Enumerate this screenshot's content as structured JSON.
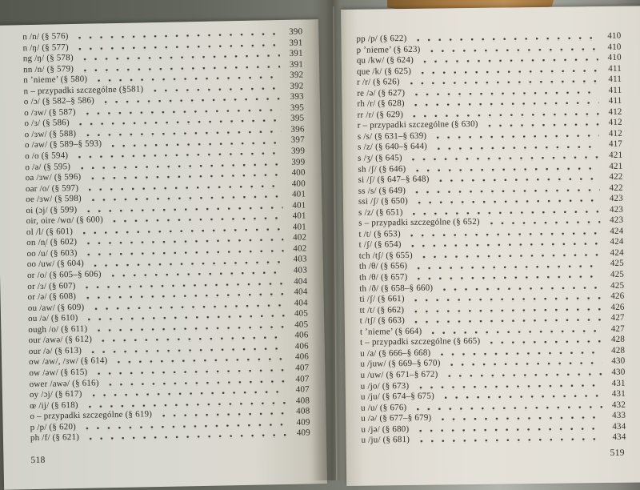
{
  "book": {
    "left_page": {
      "page_number": "518",
      "entries": [
        {
          "label": "n /n/ (§ 576)",
          "page": "390"
        },
        {
          "label": "n /ŋ/ (§ 577)",
          "page": "391"
        },
        {
          "label": "ng /ŋ/ (§ 578)",
          "page": "391"
        },
        {
          "label": "nn /n/ (§ 579)",
          "page": "391"
        },
        {
          "label": "n ’nieme’ (§ 580)",
          "page": "392"
        },
        {
          "label": "n – przypadki szczególne (§581)",
          "page": "392"
        },
        {
          "label": "o /ɔ/ (§ 582–§ 586)",
          "page": "393"
        },
        {
          "label": "o /ɜw/ (§ 587)",
          "page": "395"
        },
        {
          "label": "o /ɜ/ (§ 586)",
          "page": "395"
        },
        {
          "label": "o /ɜw/ (§ 588)",
          "page": "396"
        },
        {
          "label": "o /əw/ (§ 589–§ 593)",
          "page": "397"
        },
        {
          "label": "o /o (§ 594)",
          "page": "399"
        },
        {
          "label": "o /ə/ (§ 595)",
          "page": "399"
        },
        {
          "label": "oa /ɜw/ (§ 596)",
          "page": "400"
        },
        {
          "label": "oar /o/ (§ 597)",
          "page": "400"
        },
        {
          "label": "oe /ɜw/ (§ 598)",
          "page": "401"
        },
        {
          "label": "oi (ɔj/ (§ 599)",
          "page": "401"
        },
        {
          "label": "oir, oire /wɑ/ (§ 600)",
          "page": "401"
        },
        {
          "label": "ol /l/ (§ 601)",
          "page": "401"
        },
        {
          "label": "on /n̩/ (§ 602)",
          "page": "402"
        },
        {
          "label": "oo /u/ (§ 603)",
          "page": "402"
        },
        {
          "label": "oo /uw/ (§ 604)",
          "page": "403"
        },
        {
          "label": "or /o/ (§ 605–§ 606)",
          "page": "403"
        },
        {
          "label": "or /ɜ/ (§ 607)",
          "page": "404"
        },
        {
          "label": "or /ə/ (§ 608)",
          "page": "404"
        },
        {
          "label": "ou /aw/ (§ 609)",
          "page": "404"
        },
        {
          "label": "ou /ə/ (§ 610)",
          "page": "405"
        },
        {
          "label": "ough /o/ (§ 611)",
          "page": "405"
        },
        {
          "label": "our /awə/ (§ 612)",
          "page": "406"
        },
        {
          "label": "our /ə/ (§ 613)",
          "page": "406"
        },
        {
          "label": "ow /aw/, /ɜw/ (§ 614)",
          "page": "406"
        },
        {
          "label": "ow /əw/ (§ 615)",
          "page": "407"
        },
        {
          "label": "ower /awə/ (§ 616)",
          "page": "407"
        },
        {
          "label": "oy /ɔj/ (§ 617)",
          "page": "407"
        },
        {
          "label": "œ /ij/ (§ 618)",
          "page": "408"
        },
        {
          "label": "o – przypadki szczególne (§ 619)",
          "page": "408"
        },
        {
          "label": "p /p/ (§ 620)",
          "page": "409"
        },
        {
          "label": "ph /f/ (§ 621)",
          "page": "409"
        }
      ]
    },
    "right_page": {
      "page_number": "519",
      "entries": [
        {
          "label": "pp /p/ (§ 622)",
          "page": "410"
        },
        {
          "label": "p ’nieme’ (§ 623)",
          "page": "410"
        },
        {
          "label": "qu /kw/ (§ 624)",
          "page": "410"
        },
        {
          "label": "que /k/ (§ 625)",
          "page": "411"
        },
        {
          "label": "r /r/ (§ 626)",
          "page": "411"
        },
        {
          "label": "re /ə/ (§ 627)",
          "page": "411"
        },
        {
          "label": "rh /r/ (§ 628)",
          "page": "411"
        },
        {
          "label": "rr /r/ (§ 629)",
          "page": "412"
        },
        {
          "label": "r – przypadki szczególne (§ 630)",
          "page": "412"
        },
        {
          "label": "s /s/ (§ 631–§ 639)",
          "page": "412"
        },
        {
          "label": "s /z/ (§ 640–§ 644)",
          "page": "417"
        },
        {
          "label": "s /ʒ/ (§ 645)",
          "page": "421"
        },
        {
          "label": "sh /ʃ/ (§ 646)",
          "page": "421"
        },
        {
          "label": "si /ʃ/ (§ 647–§ 648)",
          "page": "422"
        },
        {
          "label": "ss /s/ (§ 649)",
          "page": "422"
        },
        {
          "label": "ssi /ʃ/ (§ 650)",
          "page": "423"
        },
        {
          "label": "s /z/ (§ 651)",
          "page": "423"
        },
        {
          "label": "s – przypadki szczególne (§ 652)",
          "page": "423"
        },
        {
          "label": "t /t/ (§ 653)",
          "page": "424"
        },
        {
          "label": "t /ʃ/ (§ 654)",
          "page": "424"
        },
        {
          "label": "tch /tʃ/ (§ 655)",
          "page": "424"
        },
        {
          "label": "th /θ/ (§ 656)",
          "page": "425"
        },
        {
          "label": "th /θ/ (§ 657)",
          "page": "425"
        },
        {
          "label": "th /ð/ (§ 658–§ 660)",
          "page": "425"
        },
        {
          "label": "ti /ʃ/ (§ 661)",
          "page": "426"
        },
        {
          "label": "tt /t/ (§ 662)",
          "page": "426"
        },
        {
          "label": "t /tʃ/ (§ 663)",
          "page": "427"
        },
        {
          "label": "t ’nieme’ (§ 664)",
          "page": "427"
        },
        {
          "label": "t – przypadki szczególne (§ 665)",
          "page": "428"
        },
        {
          "label": "u /a/ (§ 666–§ 668)",
          "page": "428"
        },
        {
          "label": "u /juw/ (§ 669–§ 670)",
          "page": "430"
        },
        {
          "label": "u /uw/ (§ 671–§ 672)",
          "page": "430"
        },
        {
          "label": "u /jo/ (§ 673)",
          "page": "431"
        },
        {
          "label": "u /ju/ (§ 674–§ 675)",
          "page": "431"
        },
        {
          "label": "u /u/ (§ 676)",
          "page": "432"
        },
        {
          "label": "u /ə/ (§ 677–§ 679)",
          "page": "433"
        },
        {
          "label": "u /jə/ (§ 680)",
          "page": "434"
        },
        {
          "label": "u /ju/ (§ 681)",
          "page": "434"
        }
      ]
    }
  },
  "colors": {
    "background": "#63665d",
    "page_left": "#d9d8d0",
    "page_right": "#e4e1d8",
    "ink": "#2f2d27",
    "tan_object": "#a5783f"
  }
}
